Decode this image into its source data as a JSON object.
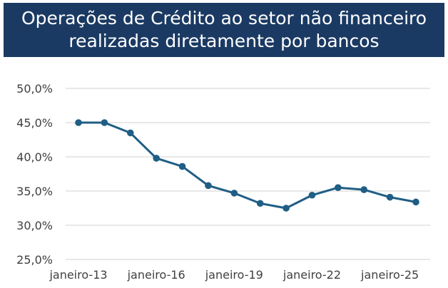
{
  "title_lines": [
    "Operações de Crédito ao setor não financeiro",
    "realizadas diretamente por bancos"
  ],
  "colors": {
    "title_bg": "#1b3a63",
    "series": "#1f5e85",
    "grid": "#d9d9d9"
  },
  "chart_data": {
    "type": "line",
    "title": "Operações de Crédito ao setor não financeiro realizadas diretamente por bancos",
    "xlabel": "",
    "ylabel": "",
    "ylim": [
      25,
      50
    ],
    "y_ticks": [
      25,
      30,
      35,
      40,
      45,
      50
    ],
    "y_tick_labels": [
      "25,0%",
      "30,0%",
      "35,0%",
      "40,0%",
      "45,0%",
      "50,0%"
    ],
    "x_tick_labels": [
      "janeiro-13",
      "janeiro-16",
      "janeiro-19",
      "janeiro-22",
      "janeiro-25"
    ],
    "x_tick_label_points": [
      0,
      3,
      6,
      9,
      12
    ],
    "grid": true,
    "legend": "none",
    "series": [
      {
        "values": [
          45.0,
          45.0,
          43.5,
          39.8,
          38.6,
          35.8,
          34.7,
          33.2,
          32.5,
          34.4,
          35.5,
          35.2,
          34.1,
          33.4
        ]
      }
    ]
  }
}
